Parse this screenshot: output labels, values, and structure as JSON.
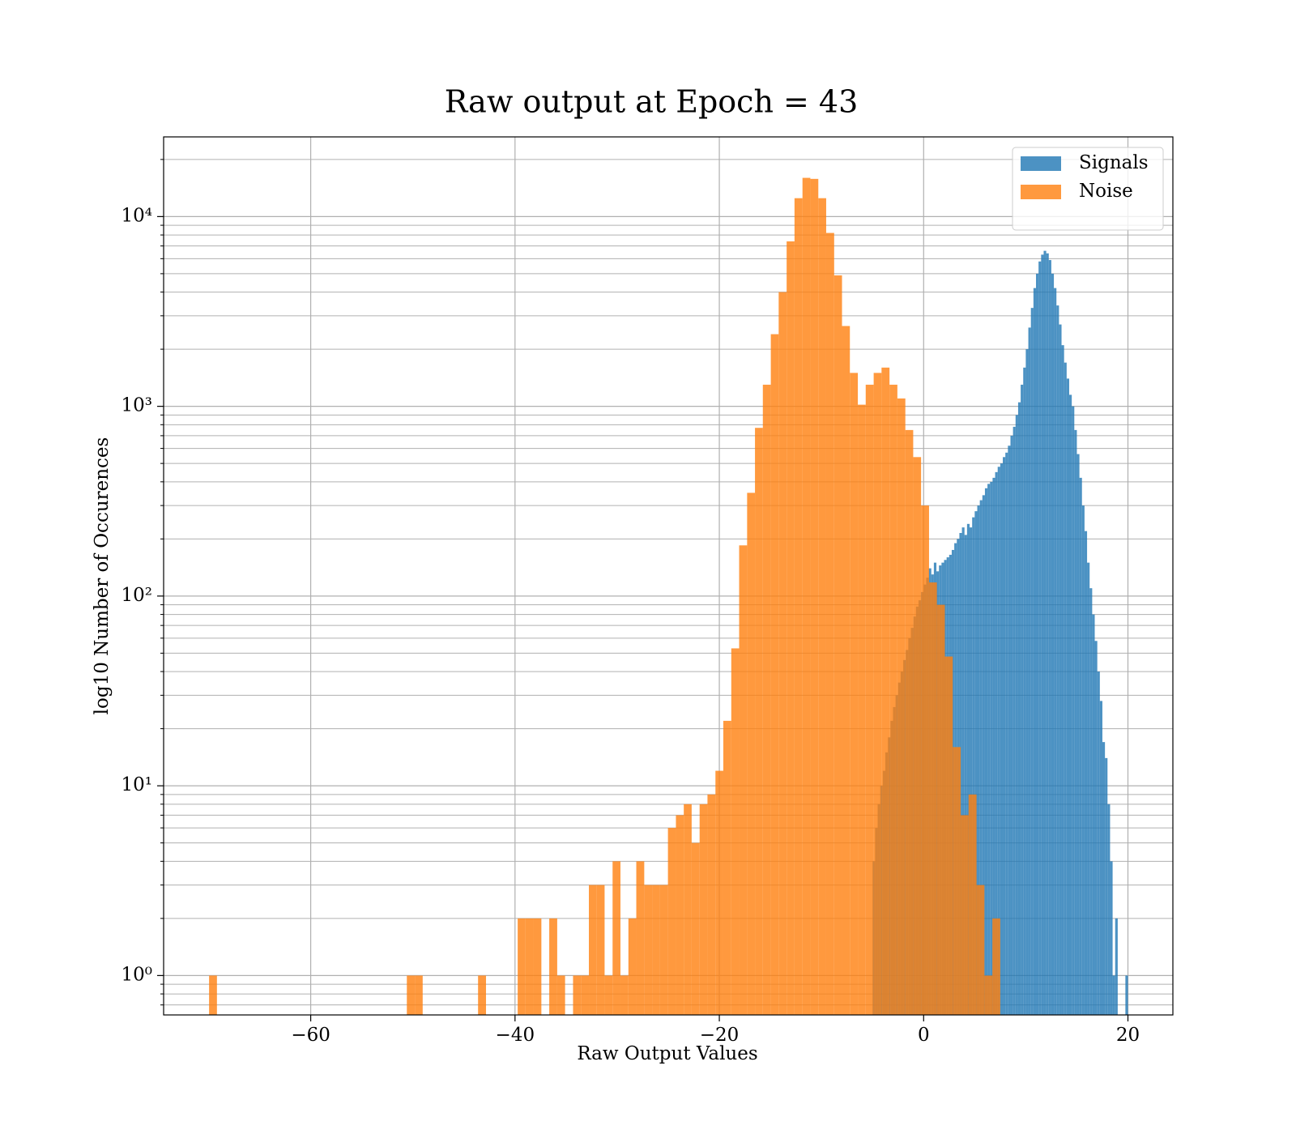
{
  "chart_data": {
    "type": "histogram",
    "title": "Raw output at Epoch = 43",
    "x_label": "Raw Output Values",
    "y_label": "log10 Number of Occurences",
    "log_y": true,
    "grid": true,
    "legend_position": "upper right",
    "xlim": [
      -74.4,
      24.4
    ],
    "xticks": [
      {
        "value": -60,
        "label": "−60"
      },
      {
        "value": -40,
        "label": "−40"
      },
      {
        "value": -20,
        "label": "−20"
      },
      0,
      20
    ],
    "ylim": [
      0.62,
      26300
    ],
    "yticks": [
      {
        "value": 1,
        "label": "10⁰"
      },
      {
        "value": 10,
        "label": "10¹"
      },
      {
        "value": 100,
        "label": "10²"
      },
      {
        "value": 1000,
        "label": "10³"
      },
      {
        "value": 10000,
        "label": "10⁴"
      }
    ],
    "yminorticks": [
      0.7,
      0.8,
      0.9,
      2,
      3,
      4,
      5,
      6,
      7,
      8,
      9,
      20,
      30,
      40,
      50,
      60,
      70,
      80,
      90,
      200,
      300,
      400,
      500,
      600,
      700,
      800,
      900,
      2000,
      3000,
      4000,
      5000,
      6000,
      7000,
      8000,
      9000,
      20000
    ],
    "series": [
      {
        "name": "Signals",
        "color": "#1f77b4",
        "bins": [
          -5,
          -4.75,
          -4.5,
          -4.25,
          -4,
          -3.75,
          -3.5,
          -3.25,
          -3,
          -2.75,
          -2.5,
          -2.25,
          -2,
          -1.75,
          -1.5,
          -1.25,
          -1,
          -0.75,
          -0.5,
          -0.25,
          0,
          0.25,
          0.5,
          0.75,
          1,
          1.25,
          1.5,
          1.75,
          2,
          2.25,
          2.5,
          2.75,
          3,
          3.25,
          3.5,
          3.75,
          4,
          4.25,
          4.5,
          4.75,
          5,
          5.25,
          5.5,
          5.75,
          6,
          6.25,
          6.5,
          6.75,
          7,
          7.25,
          7.5,
          7.75,
          8,
          8.25,
          8.5,
          8.75,
          9,
          9.25,
          9.5,
          9.75,
          10,
          10.25,
          10.5,
          10.75,
          11,
          11.25,
          11.5,
          11.75,
          12,
          12.25,
          12.5,
          12.75,
          13,
          13.25,
          13.5,
          13.75,
          14,
          14.25,
          14.5,
          14.75,
          15,
          15.25,
          15.5,
          15.75,
          16,
          16.25,
          16.5,
          16.75,
          17,
          17.25,
          17.5,
          17.75,
          18,
          18.25,
          18.5,
          18.75,
          19,
          19.25,
          19.5,
          19.75,
          20
        ],
        "values": [
          4,
          6,
          8,
          10,
          12,
          15,
          18,
          22,
          26,
          30,
          35,
          40,
          46,
          52,
          60,
          68,
          78,
          88,
          95,
          105,
          115,
          125,
          140,
          130,
          150,
          135,
          145,
          150,
          155,
          160,
          165,
          175,
          190,
          200,
          215,
          230,
          210,
          240,
          230,
          260,
          280,
          300,
          320,
          340,
          370,
          390,
          400,
          420,
          450,
          480,
          500,
          540,
          570,
          620,
          700,
          780,
          900,
          1050,
          1300,
          1600,
          2000,
          2600,
          3300,
          4200,
          5000,
          5800,
          6300,
          6600,
          6400,
          5900,
          5000,
          4200,
          3400,
          2700,
          2100,
          1700,
          1400,
          1150,
          1000,
          750,
          560,
          420,
          300,
          220,
          150,
          110,
          80,
          58,
          40,
          28,
          17,
          14,
          8,
          4,
          1,
          2,
          0,
          0,
          0,
          1
        ]
      },
      {
        "name": "Noise",
        "color": "#ff7f0e",
        "bins": [
          -69.95,
          -69.18,
          -68.4,
          -67.63,
          -66.85,
          -66.08,
          -65.3,
          -64.53,
          -63.75,
          -62.98,
          -62.21,
          -61.43,
          -60.66,
          -59.88,
          -59.11,
          -58.33,
          -57.56,
          -56.78,
          -56.01,
          -55.23,
          -54.46,
          -53.69,
          -52.91,
          -52.14,
          -51.36,
          -50.59,
          -49.81,
          -49.04,
          -48.26,
          -47.49,
          -46.72,
          -45.94,
          -45.17,
          -44.39,
          -43.62,
          -42.84,
          -42.07,
          -41.29,
          -40.52,
          -39.74,
          -38.97,
          -38.2,
          -37.42,
          -36.65,
          -35.87,
          -35.1,
          -34.32,
          -33.55,
          -32.77,
          -32,
          -31.23,
          -30.45,
          -29.68,
          -28.9,
          -28.13,
          -27.35,
          -26.58,
          -25.8,
          -25.03,
          -24.25,
          -23.48,
          -22.71,
          -21.93,
          -21.16,
          -20.38,
          -19.61,
          -18.83,
          -18.06,
          -17.28,
          -16.51,
          -15.74,
          -14.96,
          -14.19,
          -13.41,
          -12.64,
          -11.86,
          -11.09,
          -10.31,
          -9.54,
          -8.76,
          -7.99,
          -7.22,
          -6.44,
          -5.67,
          -4.89,
          -4.12,
          -3.34,
          -2.57,
          -1.79,
          -1.02,
          -0.25,
          0.53,
          1.3,
          2.08,
          2.85,
          3.63,
          4.4,
          5.18,
          5.95,
          6.73,
          7.5
        ],
        "values": [
          1,
          0,
          0,
          0,
          0,
          0,
          0,
          0,
          0,
          0,
          0,
          0,
          0,
          0,
          0,
          0,
          0,
          0,
          0,
          0,
          0,
          0,
          0,
          0,
          0,
          1,
          1,
          0,
          0,
          0,
          0,
          0,
          0,
          0,
          1,
          0,
          0,
          0,
          0,
          2,
          2,
          2,
          0,
          2,
          1,
          0,
          1,
          1,
          3,
          3,
          1,
          4,
          1,
          2,
          4,
          3,
          3,
          3,
          6,
          7,
          8,
          5,
          8,
          9,
          12,
          22,
          53,
          185,
          350,
          770,
          1300,
          2400,
          4000,
          7400,
          12500,
          16000,
          15800,
          12500,
          8200,
          4900,
          2650,
          1500,
          1020,
          1300,
          1500,
          1600,
          1300,
          1100,
          750,
          540,
          300,
          118,
          90,
          48,
          16,
          7,
          9,
          3,
          1,
          2
        ]
      }
    ]
  }
}
